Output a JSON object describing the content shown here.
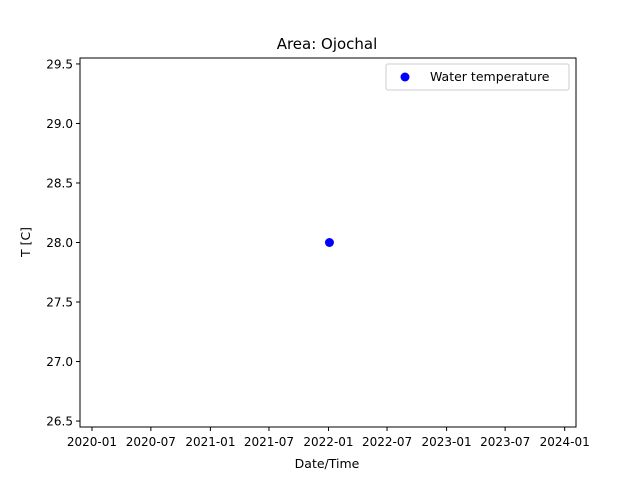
{
  "chart_data": {
    "type": "scatter",
    "title": "Area: Ojochal",
    "xlabel": "Date/Time",
    "ylabel": "T [C]",
    "x_ticks": [
      "2020-01",
      "2020-07",
      "2021-01",
      "2021-07",
      "2022-01",
      "2022-07",
      "2023-01",
      "2023-07",
      "2024-01"
    ],
    "y_ticks": [
      "26.5",
      "27.0",
      "27.5",
      "28.0",
      "28.5",
      "29.0",
      "29.5"
    ],
    "xlim": [
      "2019-11-25",
      "2024-02-05"
    ],
    "ylim": [
      26.45,
      29.55
    ],
    "grid": false,
    "legend_position": "top-right",
    "series": [
      {
        "name": "Water temperature",
        "color": "#0000ff",
        "marker": "circle",
        "points": [
          {
            "x": "2022-01-04",
            "y": 28.0
          }
        ]
      }
    ]
  }
}
